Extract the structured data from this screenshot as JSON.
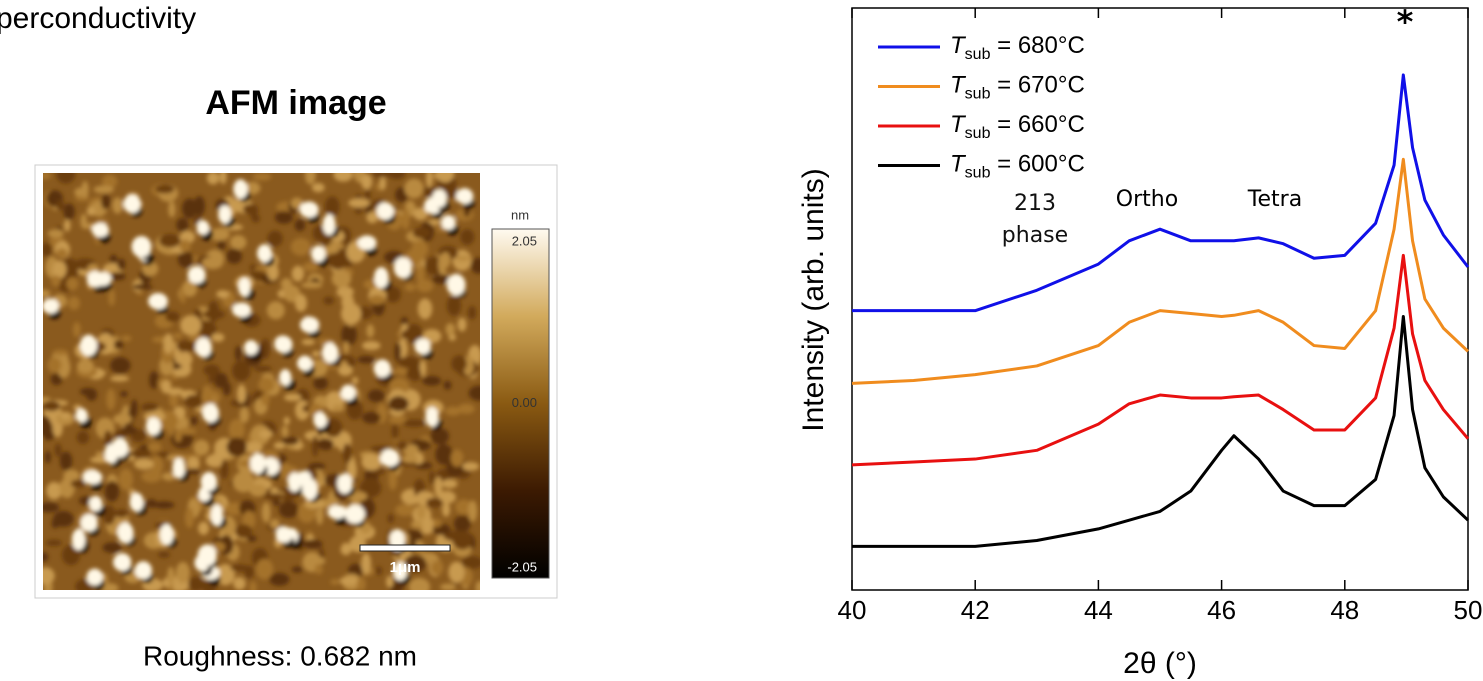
{
  "header": {
    "title": "perconductivity"
  },
  "afm": {
    "title": "AFM image",
    "colorbar": {
      "unit": "nm",
      "clim": [
        -2.05,
        2.05
      ],
      "ticks": [
        2.05,
        {
          "value": 0,
          "label": "0.00"
        },
        -2.05
      ]
    },
    "scale_bar": "1μm",
    "caption": "Roughness: 0.682 nm"
  },
  "chart_data": {
    "type": "line",
    "xlabel": "2θ (°)",
    "ylabel": "Intensity (arb. units)",
    "xlim": [
      40,
      50
    ],
    "xticks": [
      40,
      42,
      44,
      46,
      48,
      50
    ],
    "ylim": [
      0,
      10
    ],
    "legend": "upper left",
    "annotations": [
      "213 phase",
      "Ortho",
      "Tetra",
      "*"
    ],
    "x": [
      40,
      41,
      42,
      43,
      44,
      44.5,
      45,
      45.5,
      46,
      46.2,
      46.6,
      47,
      47.5,
      48,
      48.5,
      48.8,
      48.95,
      49.1,
      49.3,
      49.6,
      50
    ],
    "series": [
      {
        "name": "Tsub = 680°C",
        "color": "#1010e8",
        "values": [
          4.8,
          4.8,
          4.8,
          5.15,
          5.6,
          6.0,
          6.2,
          6.0,
          6.0,
          6.0,
          6.05,
          5.95,
          5.7,
          5.75,
          6.3,
          7.3,
          8.85,
          7.6,
          6.7,
          6.1,
          5.55
        ]
      },
      {
        "name": "Tsub = 670°C",
        "color": "#f08c1e",
        "values": [
          3.55,
          3.6,
          3.7,
          3.85,
          4.2,
          4.6,
          4.8,
          4.75,
          4.7,
          4.72,
          4.8,
          4.6,
          4.2,
          4.15,
          4.8,
          6.2,
          7.4,
          6.0,
          5.0,
          4.5,
          4.1
        ]
      },
      {
        "name": "Tsub = 660°C",
        "color": "#e81010",
        "values": [
          2.15,
          2.2,
          2.25,
          2.4,
          2.85,
          3.2,
          3.35,
          3.3,
          3.3,
          3.32,
          3.35,
          3.1,
          2.75,
          2.75,
          3.3,
          4.5,
          5.75,
          4.4,
          3.6,
          3.1,
          2.6
        ]
      },
      {
        "name": "Tsub = 600°C",
        "color": "#000000",
        "values": [
          0.75,
          0.75,
          0.75,
          0.85,
          1.05,
          1.2,
          1.35,
          1.7,
          2.4,
          2.65,
          2.25,
          1.7,
          1.45,
          1.45,
          1.9,
          3.0,
          4.7,
          3.1,
          2.1,
          1.6,
          1.2
        ]
      }
    ]
  }
}
